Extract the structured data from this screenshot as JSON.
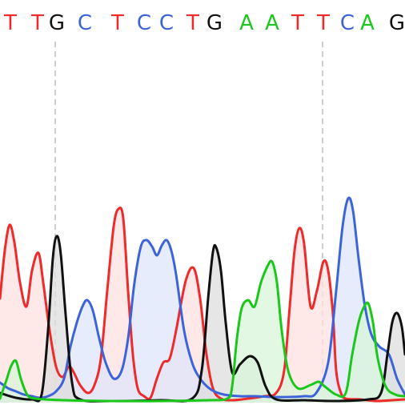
{
  "chart_data": {
    "type": "line",
    "title": "",
    "xlabel": "",
    "ylabel": "",
    "xlim": [
      0,
      506
    ],
    "ylim": [
      0,
      255
    ],
    "grid": false,
    "legend": "none",
    "base_colors": {
      "A": "#1cc71c",
      "C": "#3c64d8",
      "G": "#111111",
      "T": "#ee2a2a"
    },
    "fill_colors": {
      "A": "#d9f5d9",
      "C": "#dfe6fb",
      "G": "#dedede",
      "T": "#fde0e0"
    },
    "base_calls": [
      {
        "base": "T",
        "x": 13
      },
      {
        "base": "T",
        "x": 47
      },
      {
        "base": "G",
        "x": 71
      },
      {
        "base": "C",
        "x": 106
      },
      {
        "base": "T",
        "x": 147
      },
      {
        "base": "C",
        "x": 180
      },
      {
        "base": "C",
        "x": 208
      },
      {
        "base": "T",
        "x": 241
      },
      {
        "base": "G",
        "x": 268
      },
      {
        "base": "A",
        "x": 308
      },
      {
        "base": "A",
        "x": 340
      },
      {
        "base": "T",
        "x": 372
      },
      {
        "base": "T",
        "x": 404
      },
      {
        "base": "C",
        "x": 434
      },
      {
        "base": "A",
        "x": 459
      },
      {
        "base": "G",
        "x": 496
      }
    ],
    "marker_positions": [
      69,
      403
    ],
    "traces": [
      {
        "base": "T",
        "points": [
          [
            0,
            130
          ],
          [
            6,
            190
          ],
          [
            12,
            222
          ],
          [
            18,
            200
          ],
          [
            25,
            150
          ],
          [
            33,
            120
          ],
          [
            40,
            165
          ],
          [
            48,
            187
          ],
          [
            54,
            150
          ],
          [
            62,
            90
          ],
          [
            70,
            45
          ],
          [
            78,
            32
          ],
          [
            86,
            45
          ],
          [
            92,
            38
          ],
          [
            100,
            22
          ],
          [
            110,
            12
          ],
          [
            118,
            22
          ],
          [
            126,
            55
          ],
          [
            134,
            140
          ],
          [
            142,
            220
          ],
          [
            148,
            242
          ],
          [
            154,
            230
          ],
          [
            160,
            140
          ],
          [
            166,
            60
          ],
          [
            172,
            18
          ],
          [
            180,
            8
          ],
          [
            188,
            6
          ],
          [
            196,
            30
          ],
          [
            204,
            50
          ],
          [
            212,
            55
          ],
          [
            220,
            90
          ],
          [
            232,
            152
          ],
          [
            242,
            168
          ],
          [
            250,
            130
          ],
          [
            258,
            60
          ],
          [
            266,
            18
          ],
          [
            276,
            5
          ],
          [
            290,
            3
          ],
          [
            310,
            5
          ],
          [
            330,
            8
          ],
          [
            345,
            12
          ],
          [
            355,
            40
          ],
          [
            362,
            120
          ],
          [
            368,
            190
          ],
          [
            374,
            218
          ],
          [
            380,
            198
          ],
          [
            388,
            120
          ],
          [
            396,
            140
          ],
          [
            404,
            176
          ],
          [
            410,
            165
          ],
          [
            416,
            110
          ],
          [
            420,
            40
          ],
          [
            426,
            12
          ],
          [
            432,
            5
          ],
          [
            450,
            4
          ],
          [
            470,
            2
          ],
          [
            490,
            3
          ],
          [
            506,
            4
          ]
        ]
      },
      {
        "base": "C",
        "points": [
          [
            0,
            25
          ],
          [
            10,
            18
          ],
          [
            20,
            14
          ],
          [
            30,
            10
          ],
          [
            40,
            8
          ],
          [
            50,
            6
          ],
          [
            60,
            8
          ],
          [
            70,
            14
          ],
          [
            80,
            30
          ],
          [
            88,
            70
          ],
          [
            96,
            100
          ],
          [
            103,
            120
          ],
          [
            109,
            128
          ],
          [
            116,
            115
          ],
          [
            124,
            80
          ],
          [
            132,
            50
          ],
          [
            142,
            30
          ],
          [
            152,
            40
          ],
          [
            160,
            80
          ],
          [
            168,
            150
          ],
          [
            176,
            195
          ],
          [
            183,
            203
          ],
          [
            190,
            195
          ],
          [
            196,
            184
          ],
          [
            202,
            196
          ],
          [
            208,
            203
          ],
          [
            214,
            190
          ],
          [
            220,
            160
          ],
          [
            230,
            90
          ],
          [
            240,
            50
          ],
          [
            250,
            30
          ],
          [
            264,
            16
          ],
          [
            280,
            10
          ],
          [
            300,
            8
          ],
          [
            320,
            8
          ],
          [
            340,
            7
          ],
          [
            360,
            7
          ],
          [
            380,
            8
          ],
          [
            395,
            12
          ],
          [
            410,
            50
          ],
          [
            420,
            140
          ],
          [
            428,
            220
          ],
          [
            435,
            255
          ],
          [
            441,
            240
          ],
          [
            448,
            180
          ],
          [
            456,
            120
          ],
          [
            464,
            85
          ],
          [
            474,
            70
          ],
          [
            486,
            60
          ],
          [
            496,
            30
          ],
          [
            506,
            10
          ]
        ]
      },
      {
        "base": "G",
        "points": [
          [
            0,
            12
          ],
          [
            20,
            6
          ],
          [
            40,
            4
          ],
          [
            52,
            10
          ],
          [
            60,
            90
          ],
          [
            66,
            180
          ],
          [
            71,
            208
          ],
          [
            76,
            185
          ],
          [
            82,
            110
          ],
          [
            90,
            25
          ],
          [
            100,
            4
          ],
          [
            140,
            2
          ],
          [
            200,
            3
          ],
          [
            240,
            5
          ],
          [
            252,
            40
          ],
          [
            260,
            130
          ],
          [
            266,
            188
          ],
          [
            270,
            194
          ],
          [
            276,
            165
          ],
          [
            282,
            100
          ],
          [
            290,
            38
          ],
          [
            300,
            48
          ],
          [
            312,
            58
          ],
          [
            322,
            50
          ],
          [
            332,
            20
          ],
          [
            345,
            4
          ],
          [
            380,
            3
          ],
          [
            420,
            2
          ],
          [
            460,
            4
          ],
          [
            476,
            12
          ],
          [
            484,
            60
          ],
          [
            490,
            100
          ],
          [
            496,
            112
          ],
          [
            502,
            95
          ],
          [
            506,
            60
          ]
        ]
      },
      {
        "base": "A",
        "points": [
          [
            0,
            5
          ],
          [
            8,
            28
          ],
          [
            14,
            46
          ],
          [
            20,
            52
          ],
          [
            26,
            30
          ],
          [
            34,
            10
          ],
          [
            44,
            5
          ],
          [
            80,
            3
          ],
          [
            140,
            2
          ],
          [
            200,
            2
          ],
          [
            260,
            3
          ],
          [
            284,
            5
          ],
          [
            290,
            20
          ],
          [
            296,
            80
          ],
          [
            302,
            118
          ],
          [
            310,
            128
          ],
          [
            318,
            120
          ],
          [
            326,
            150
          ],
          [
            334,
            170
          ],
          [
            340,
            176
          ],
          [
            346,
            150
          ],
          [
            352,
            90
          ],
          [
            360,
            40
          ],
          [
            372,
            18
          ],
          [
            388,
            22
          ],
          [
            398,
            26
          ],
          [
            406,
            20
          ],
          [
            420,
            10
          ],
          [
            432,
            12
          ],
          [
            440,
            60
          ],
          [
            448,
            100
          ],
          [
            454,
            118
          ],
          [
            460,
            124
          ],
          [
            466,
            100
          ],
          [
            472,
            55
          ],
          [
            482,
            20
          ],
          [
            494,
            10
          ],
          [
            506,
            8
          ]
        ]
      }
    ]
  }
}
